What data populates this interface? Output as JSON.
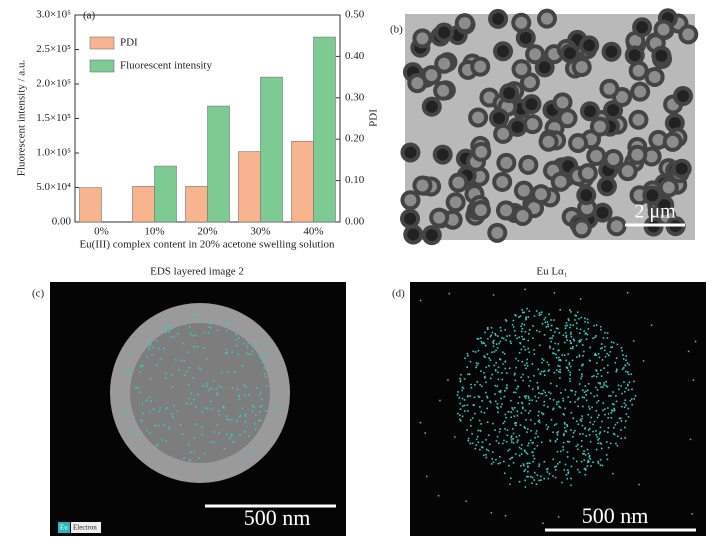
{
  "chart_data": {
    "type": "bar",
    "panel_label": "(a)",
    "x_label": "Eu(III) complex content in 20% acetone swelling solution",
    "y_label": "Fluorescent intensity / a.u.",
    "y2_label": "PDI",
    "categories": [
      "0%",
      "10%",
      "20%",
      "30%",
      "40%"
    ],
    "series": [
      {
        "name": "PDI",
        "color": "#f7b48e",
        "axis": "y2",
        "values": [
          0.083,
          0.086,
          0.086,
          0.17,
          0.195
        ]
      },
      {
        "name": "Fluorescent intensity",
        "color": "#7dca93",
        "values": [
          null,
          81000,
          168000,
          210000,
          268000
        ]
      }
    ],
    "ylim": [
      0,
      300000
    ],
    "yticks": [
      {
        "value": 0,
        "label": "0.00"
      },
      {
        "value": 50000,
        "label": "5.0×10⁴"
      },
      {
        "value": 100000,
        "label": "1.0×10⁵"
      },
      {
        "value": 150000,
        "label": "1.5×10⁵"
      },
      {
        "value": 200000,
        "label": "2.0×10⁵"
      },
      {
        "value": 250000,
        "label": "2.5×10⁵"
      },
      {
        "value": 300000,
        "label": "3.0×10⁵"
      }
    ],
    "y2lim": [
      0,
      0.5
    ],
    "y2ticks": [
      {
        "value": 0,
        "label": "0.00"
      },
      {
        "value": 0.1,
        "label": "0.10"
      },
      {
        "value": 0.2,
        "label": "0.20"
      },
      {
        "value": 0.3,
        "label": "0.30"
      },
      {
        "value": 0.4,
        "label": "0.40"
      },
      {
        "value": 0.5,
        "label": "0.50"
      }
    ],
    "legend": "upper left",
    "grid": false
  },
  "panels": {
    "b": {
      "label": "(b)",
      "scale": "2 μm"
    },
    "c": {
      "label": "(c)",
      "title": "EDS layered image 2",
      "scale": "500 nm",
      "legend_eu": "Eu",
      "legend_electron": "Electron"
    },
    "d": {
      "label": "(d)",
      "title": "Eu Lα₁",
      "scale": "500 nm"
    }
  }
}
